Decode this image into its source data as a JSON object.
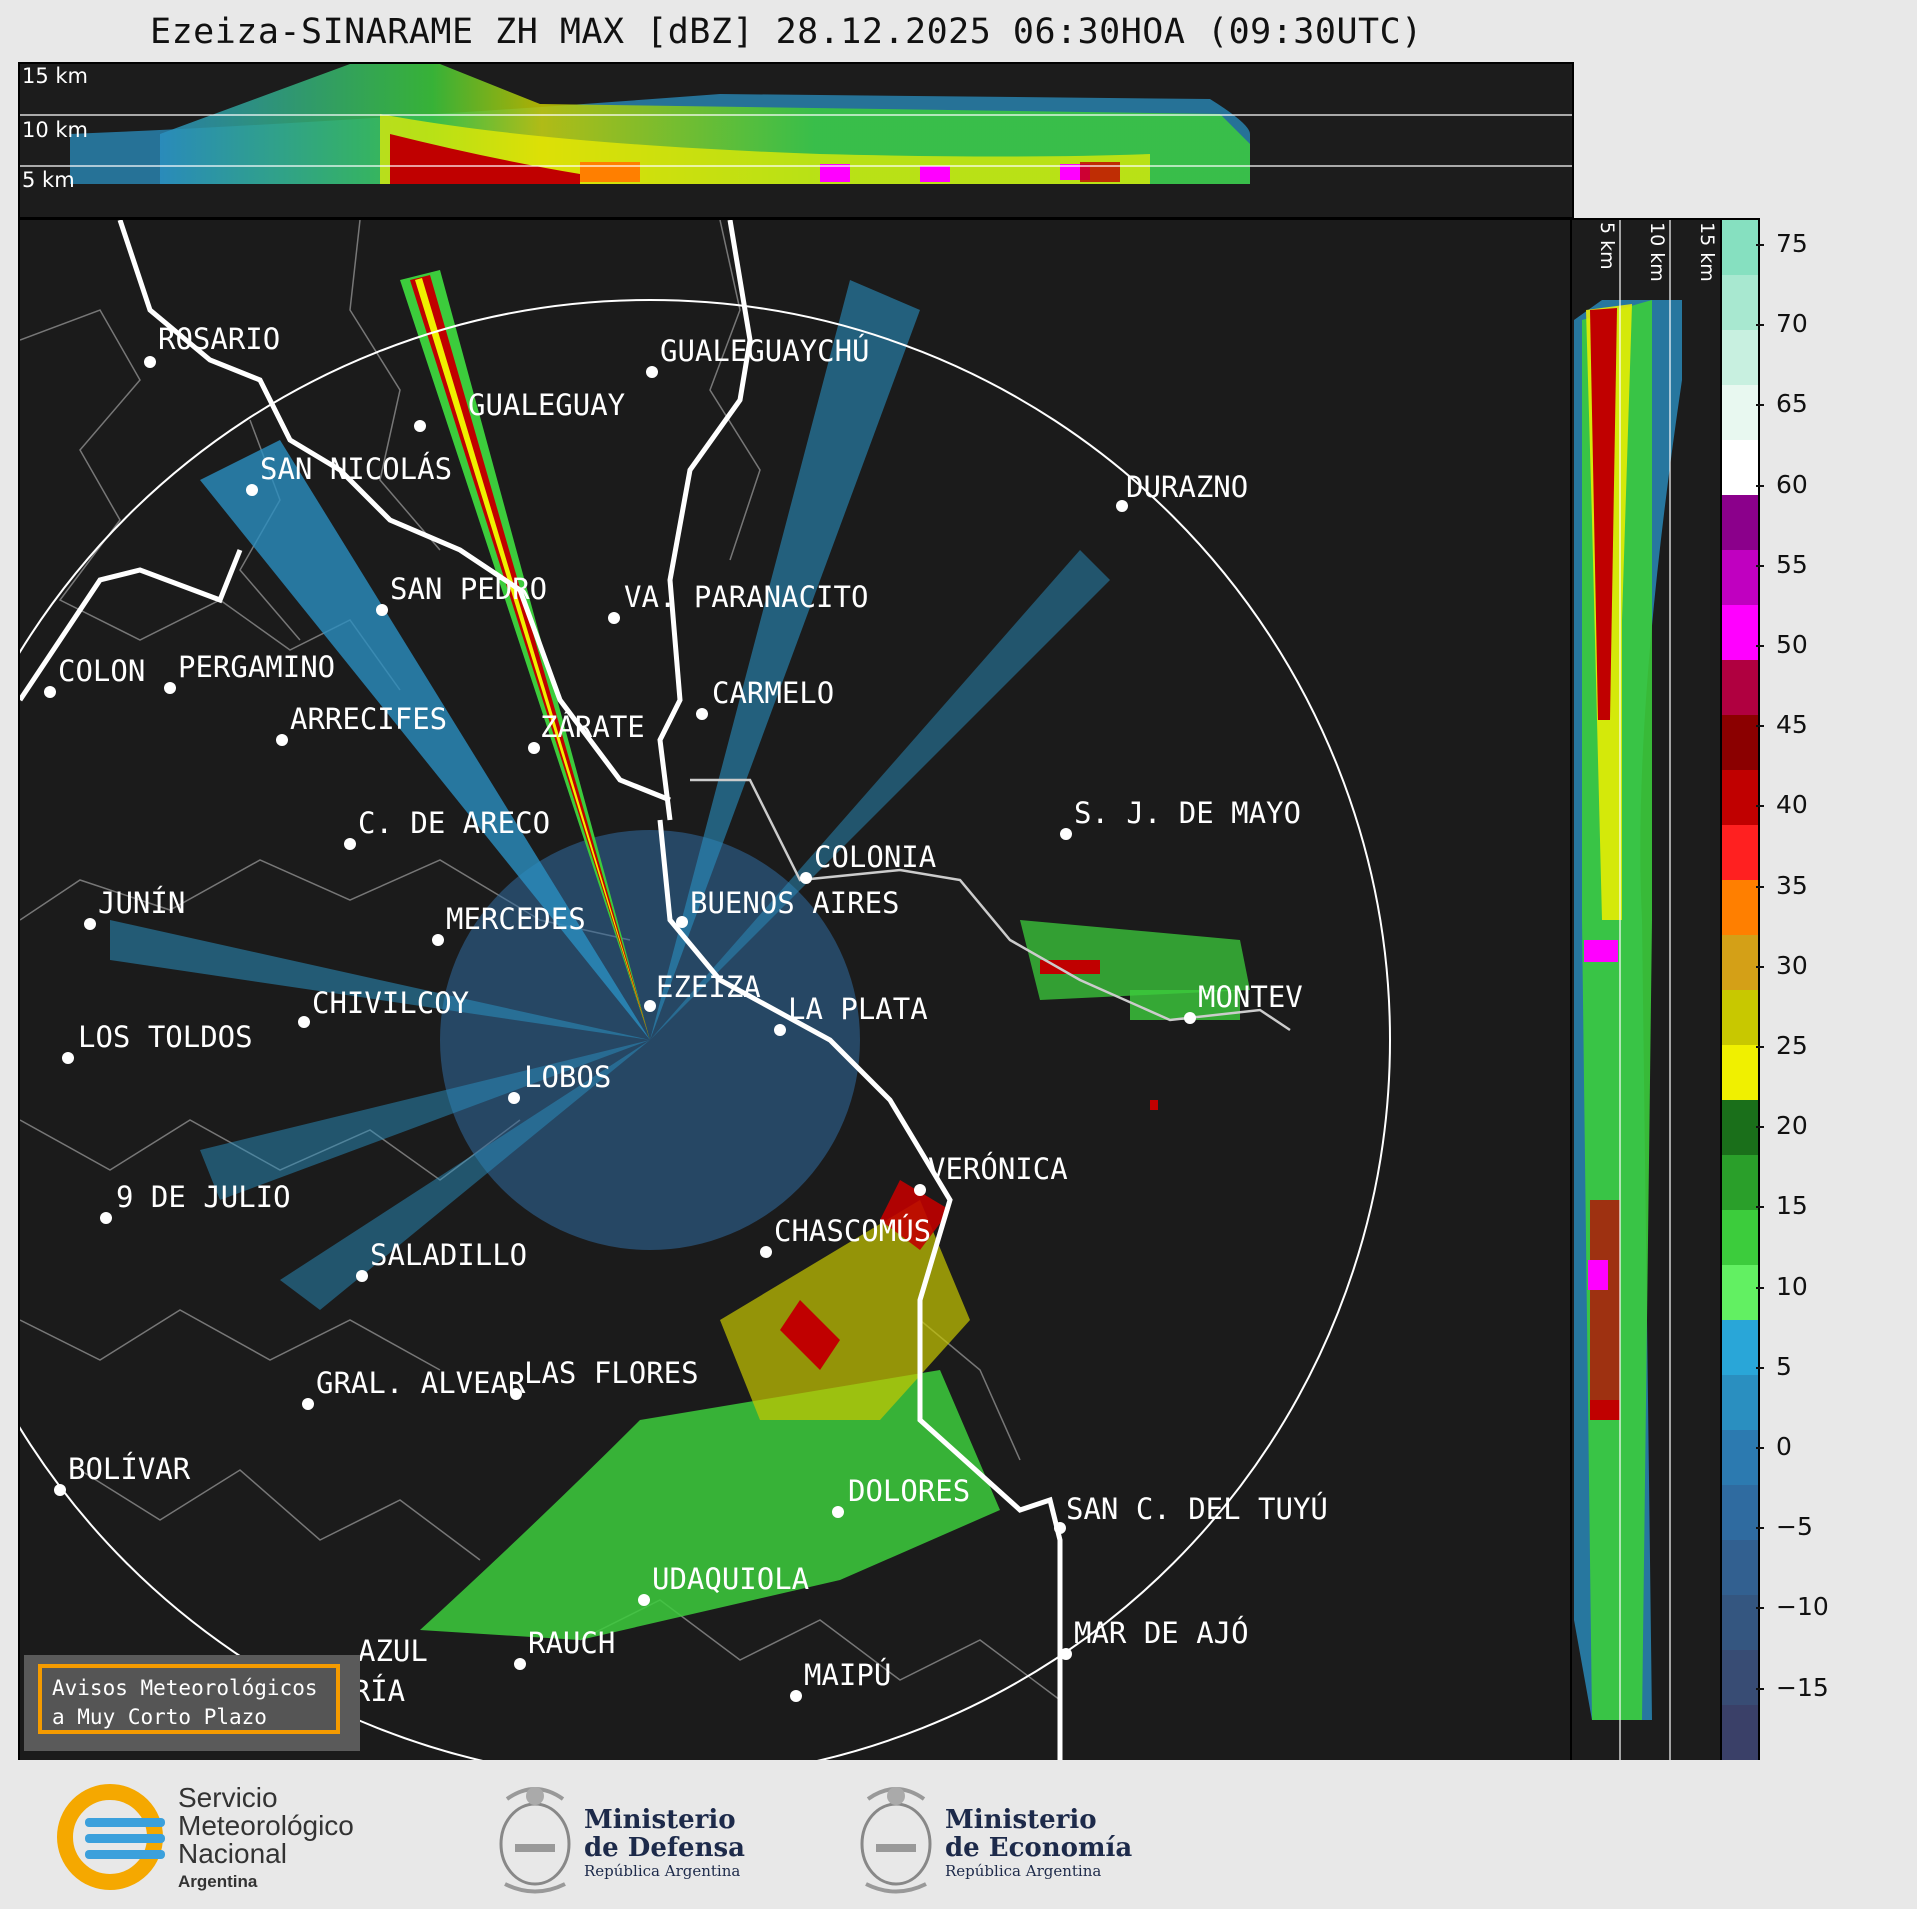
{
  "title": "Ezeiza-SINARAME ZH MAX [dBZ] 28.12.2025 06:30HOA (09:30UTC)",
  "height_labels": {
    "h15": "15 km",
    "h10": "10 km",
    "h5": "5 km"
  },
  "colorbar": {
    "ticks": [
      "75",
      "70",
      "65",
      "60",
      "55",
      "50",
      "45",
      "40",
      "35",
      "30",
      "25",
      "20",
      "15",
      "10",
      "5",
      "0",
      "−5",
      "−10",
      "−15"
    ],
    "colors": [
      "#86e0c0",
      "#a8e8d0",
      "#c8f0e0",
      "#e8f8f0",
      "#ffffff",
      "#8b008b",
      "#c000c0",
      "#ff00ff",
      "#b00040",
      "#8b0000",
      "#c00000",
      "#ff2020",
      "#ff7f00",
      "#d4a017",
      "#c8c800",
      "#f0f000",
      "#1a6f1a",
      "#2a9f2a",
      "#3ccc3c",
      "#62f062",
      "#29a6d8",
      "#2a8fc0",
      "#2c7ab0",
      "#2f6ba0",
      "#326090",
      "#345680",
      "#384c74",
      "#3a4068"
    ]
  },
  "cities": [
    {
      "name": "ROSARIO"
    },
    {
      "name": "GUALEGUAYCHÚ"
    },
    {
      "name": "GUALEGUAY"
    },
    {
      "name": "SAN NICOLÁS"
    },
    {
      "name": "DURAZNO"
    },
    {
      "name": "SAN PEDRO"
    },
    {
      "name": "VA. PARANACITO"
    },
    {
      "name": "COLON"
    },
    {
      "name": "PERGAMINO"
    },
    {
      "name": "CARMELO"
    },
    {
      "name": "ARRECIFES"
    },
    {
      "name": "ZÁRATE"
    },
    {
      "name": "S. J. DE MAYO"
    },
    {
      "name": "C. DE ARECO"
    },
    {
      "name": "COLONIA"
    },
    {
      "name": "JUNÍN"
    },
    {
      "name": "BUENOS AIRES"
    },
    {
      "name": "MERCEDES"
    },
    {
      "name": "EZEIZA"
    },
    {
      "name": "MONTEV"
    },
    {
      "name": "CHIVILCOY"
    },
    {
      "name": "LA PLATA"
    },
    {
      "name": "LOS TOLDOS"
    },
    {
      "name": "LOBOS"
    },
    {
      "name": "VERÓNICA"
    },
    {
      "name": "9 DE JULIO"
    },
    {
      "name": "CHASCOMÚS"
    },
    {
      "name": "SALADILLO"
    },
    {
      "name": "GRAL. ALVEAR"
    },
    {
      "name": "LAS FLORES"
    },
    {
      "name": "BOLÍVAR"
    },
    {
      "name": "DOLORES"
    },
    {
      "name": "SAN C. DEL TUYÚ"
    },
    {
      "name": "UDAQUIOLA"
    },
    {
      "name": "MAR DE AJÓ"
    },
    {
      "name": "AZUL"
    },
    {
      "name": "RAUCH"
    },
    {
      "name": "OLAVARRÍA"
    },
    {
      "name": "MAIPÚ"
    }
  ],
  "notice": {
    "line1": "Avisos Meteorológicos",
    "line2": "a Muy Corto Plazo"
  },
  "footer": {
    "smn_1": "Servicio",
    "smn_2": "Meteorológico",
    "smn_3": "Nacional",
    "smn_4": "Argentina",
    "def_1": "Ministerio",
    "def_2": "de Defensa",
    "def_3": "República Argentina",
    "eco_1": "Ministerio",
    "eco_2": "de Economía",
    "eco_3": "República Argentina"
  }
}
